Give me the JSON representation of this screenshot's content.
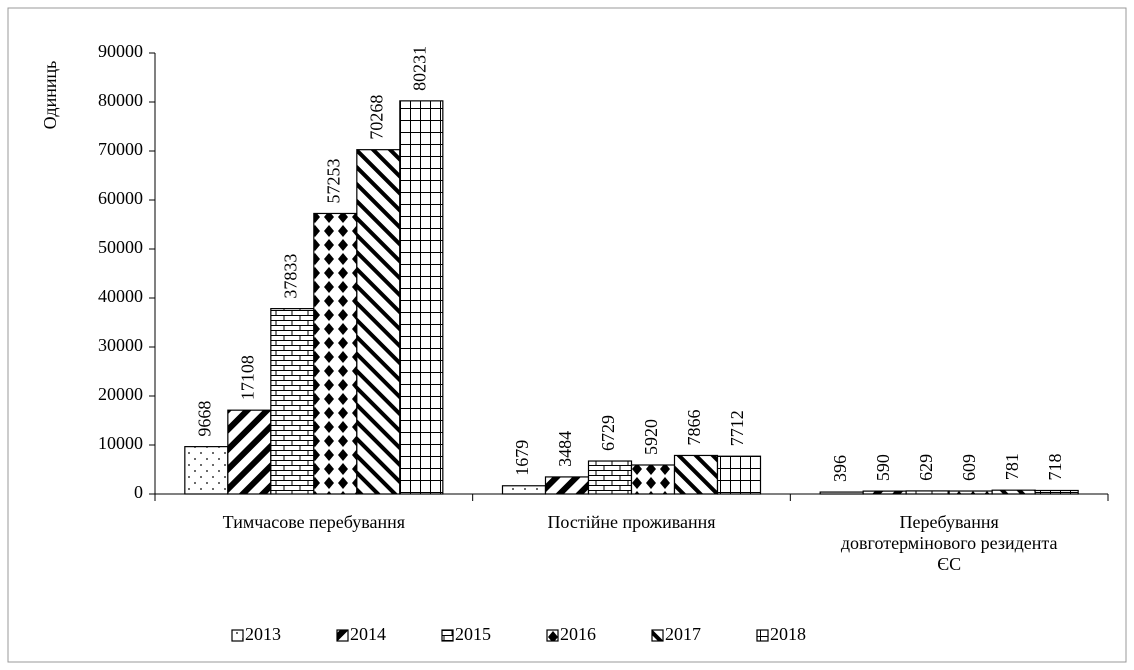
{
  "chart_data": {
    "type": "bar",
    "y_label": "Одиниць",
    "categories": [
      "Тимчасове перебування",
      "Постійне проживання",
      "Перебування\nдовготермінового резидента\nЄС"
    ],
    "series": [
      {
        "name": "2013",
        "color": "#000000",
        "pattern": "dots",
        "values": [
          9668,
          1679,
          396
        ]
      },
      {
        "name": "2014",
        "color": "#000000",
        "pattern": "wide-diag",
        "values": [
          17108,
          3484,
          590
        ]
      },
      {
        "name": "2015",
        "color": "#000000",
        "pattern": "bricks",
        "values": [
          37833,
          6729,
          629
        ]
      },
      {
        "name": "2016",
        "color": "#000000",
        "pattern": "diamonds",
        "values": [
          57253,
          5920,
          609
        ]
      },
      {
        "name": "2017",
        "color": "#000000",
        "pattern": "back-diag",
        "values": [
          70268,
          7866,
          781
        ]
      },
      {
        "name": "2018",
        "color": "#000000",
        "pattern": "grid",
        "values": [
          80231,
          7712,
          718
        ]
      }
    ],
    "ylim": [
      0,
      90000
    ],
    "yticks": [
      0,
      10000,
      20000,
      30000,
      40000,
      50000,
      60000,
      70000,
      80000,
      90000
    ],
    "legend": "bottom"
  }
}
